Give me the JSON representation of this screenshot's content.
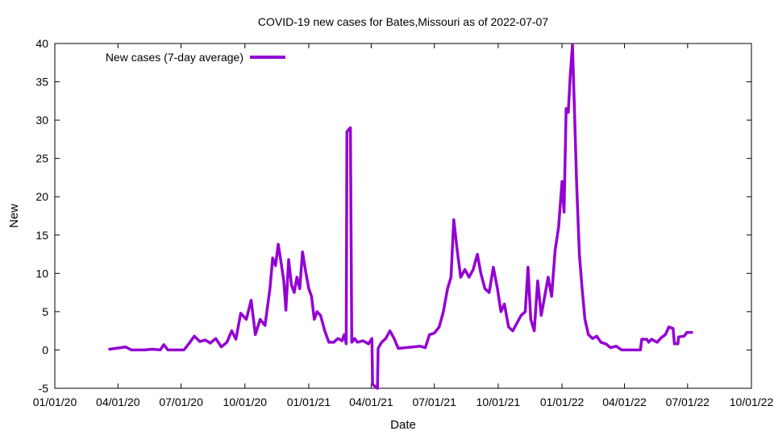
{
  "chart_data": {
    "type": "line",
    "title": "COVID-19 new cases for Bates,Missouri as of 2022-07-07",
    "xlabel": "Date",
    "ylabel": "New",
    "xlim": [
      "2020-01-01",
      "2022-10-01"
    ],
    "ylim": [
      -5,
      40
    ],
    "x_ticks": [
      "01/01/20",
      "04/01/20",
      "07/01/20",
      "10/01/20",
      "01/01/21",
      "04/01/21",
      "07/01/21",
      "10/01/21",
      "01/01/22",
      "04/01/22",
      "07/01/22",
      "10/01/22"
    ],
    "y_ticks": [
      -5,
      0,
      5,
      10,
      15,
      20,
      25,
      30,
      35,
      40
    ],
    "grid": false,
    "legend_position": "top-left",
    "series": [
      {
        "name": "New cases (7-day average)",
        "color": "#9400d3",
        "points": [
          [
            "2020-03-20",
            0.1
          ],
          [
            "2020-03-28",
            0.2
          ],
          [
            "2020-04-05",
            0.3
          ],
          [
            "2020-04-12",
            0.4
          ],
          [
            "2020-04-20",
            0.0
          ],
          [
            "2020-05-10",
            0.0
          ],
          [
            "2020-05-20",
            0.1
          ],
          [
            "2020-06-01",
            0.0
          ],
          [
            "2020-06-06",
            0.7
          ],
          [
            "2020-06-12",
            0.0
          ],
          [
            "2020-07-05",
            0.0
          ],
          [
            "2020-07-12",
            0.8
          ],
          [
            "2020-07-20",
            1.8
          ],
          [
            "2020-07-28",
            1.1
          ],
          [
            "2020-08-05",
            1.3
          ],
          [
            "2020-08-12",
            0.9
          ],
          [
            "2020-08-20",
            1.5
          ],
          [
            "2020-08-28",
            0.4
          ],
          [
            "2020-09-05",
            1.0
          ],
          [
            "2020-09-12",
            2.5
          ],
          [
            "2020-09-18",
            1.4
          ],
          [
            "2020-09-25",
            4.8
          ],
          [
            "2020-10-03",
            4.0
          ],
          [
            "2020-10-10",
            6.5
          ],
          [
            "2020-10-16",
            2.0
          ],
          [
            "2020-10-23",
            4.0
          ],
          [
            "2020-10-30",
            3.2
          ],
          [
            "2020-11-06",
            8.0
          ],
          [
            "2020-11-10",
            12.0
          ],
          [
            "2020-11-14",
            11.0
          ],
          [
            "2020-11-18",
            13.8
          ],
          [
            "2020-11-22",
            11.5
          ],
          [
            "2020-11-26",
            9.0
          ],
          [
            "2020-11-29",
            5.2
          ],
          [
            "2020-12-03",
            11.8
          ],
          [
            "2020-12-07",
            8.5
          ],
          [
            "2020-12-11",
            7.5
          ],
          [
            "2020-12-15",
            9.5
          ],
          [
            "2020-12-19",
            8.0
          ],
          [
            "2020-12-23",
            12.8
          ],
          [
            "2020-12-27",
            10.5
          ],
          [
            "2021-01-01",
            8.0
          ],
          [
            "2021-01-05",
            7.0
          ],
          [
            "2021-01-09",
            4.0
          ],
          [
            "2021-01-13",
            5.0
          ],
          [
            "2021-01-18",
            4.5
          ],
          [
            "2021-01-24",
            2.5
          ],
          [
            "2021-01-30",
            1.0
          ],
          [
            "2021-02-06",
            1.0
          ],
          [
            "2021-02-12",
            1.5
          ],
          [
            "2021-02-18",
            1.2
          ],
          [
            "2021-02-21",
            2.0
          ],
          [
            "2021-02-24",
            0.8
          ],
          [
            "2021-02-25",
            28.5
          ],
          [
            "2021-03-02",
            29.0
          ],
          [
            "2021-03-04",
            1.0
          ],
          [
            "2021-03-08",
            1.5
          ],
          [
            "2021-03-12",
            1.0
          ],
          [
            "2021-03-20",
            1.2
          ],
          [
            "2021-03-28",
            0.8
          ],
          [
            "2021-04-02",
            1.5
          ],
          [
            "2021-04-03",
            -4.5
          ],
          [
            "2021-04-10",
            -5.0
          ],
          [
            "2021-04-11",
            0.2
          ],
          [
            "2021-04-16",
            1.0
          ],
          [
            "2021-04-22",
            1.5
          ],
          [
            "2021-04-28",
            2.5
          ],
          [
            "2021-05-04",
            1.5
          ],
          [
            "2021-05-10",
            0.2
          ],
          [
            "2021-05-20",
            0.3
          ],
          [
            "2021-06-01",
            0.4
          ],
          [
            "2021-06-10",
            0.5
          ],
          [
            "2021-06-18",
            0.3
          ],
          [
            "2021-06-24",
            2.0
          ],
          [
            "2021-07-01",
            2.2
          ],
          [
            "2021-07-08",
            3.0
          ],
          [
            "2021-07-14",
            5.0
          ],
          [
            "2021-07-20",
            8.0
          ],
          [
            "2021-07-25",
            9.5
          ],
          [
            "2021-07-29",
            17.0
          ],
          [
            "2021-08-03",
            13.0
          ],
          [
            "2021-08-08",
            9.5
          ],
          [
            "2021-08-14",
            10.5
          ],
          [
            "2021-08-20",
            9.5
          ],
          [
            "2021-08-26",
            10.5
          ],
          [
            "2021-09-01",
            12.5
          ],
          [
            "2021-09-06",
            10.0
          ],
          [
            "2021-09-12",
            8.0
          ],
          [
            "2021-09-18",
            7.5
          ],
          [
            "2021-09-24",
            10.8
          ],
          [
            "2021-09-30",
            8.0
          ],
          [
            "2021-10-05",
            5.0
          ],
          [
            "2021-10-10",
            6.0
          ],
          [
            "2021-10-16",
            3.0
          ],
          [
            "2021-10-22",
            2.5
          ],
          [
            "2021-10-28",
            3.5
          ],
          [
            "2021-11-03",
            4.5
          ],
          [
            "2021-11-09",
            5.0
          ],
          [
            "2021-11-13",
            10.8
          ],
          [
            "2021-11-17",
            4.0
          ],
          [
            "2021-11-22",
            2.5
          ],
          [
            "2021-11-27",
            9.0
          ],
          [
            "2021-12-02",
            4.5
          ],
          [
            "2021-12-07",
            7.0
          ],
          [
            "2021-12-12",
            9.5
          ],
          [
            "2021-12-17",
            7.0
          ],
          [
            "2021-12-22",
            13.0
          ],
          [
            "2021-12-27",
            16.0
          ],
          [
            "2022-01-01",
            22.0
          ],
          [
            "2022-01-04",
            18.0
          ],
          [
            "2022-01-07",
            31.5
          ],
          [
            "2022-01-10",
            31.0
          ],
          [
            "2022-01-13",
            36.0
          ],
          [
            "2022-01-16",
            39.8
          ],
          [
            "2022-01-19",
            31.0
          ],
          [
            "2022-01-22",
            22.0
          ],
          [
            "2022-01-26",
            12.5
          ],
          [
            "2022-01-30",
            8.0
          ],
          [
            "2022-02-03",
            4.0
          ],
          [
            "2022-02-08",
            2.0
          ],
          [
            "2022-02-14",
            1.5
          ],
          [
            "2022-02-20",
            1.8
          ],
          [
            "2022-02-26",
            1.0
          ],
          [
            "2022-03-05",
            0.8
          ],
          [
            "2022-03-12",
            0.3
          ],
          [
            "2022-03-20",
            0.5
          ],
          [
            "2022-03-28",
            0.0
          ],
          [
            "2022-04-10",
            0.0
          ],
          [
            "2022-04-24",
            0.0
          ],
          [
            "2022-04-26",
            1.4
          ],
          [
            "2022-05-03",
            1.4
          ],
          [
            "2022-05-06",
            1.0
          ],
          [
            "2022-05-10",
            1.4
          ],
          [
            "2022-05-18",
            1.0
          ],
          [
            "2022-05-24",
            1.6
          ],
          [
            "2022-05-30",
            2.0
          ],
          [
            "2022-06-04",
            3.0
          ],
          [
            "2022-06-10",
            2.8
          ],
          [
            "2022-06-12",
            0.8
          ],
          [
            "2022-06-17",
            0.8
          ],
          [
            "2022-06-18",
            1.7
          ],
          [
            "2022-06-26",
            1.8
          ],
          [
            "2022-06-30",
            2.3
          ],
          [
            "2022-07-07",
            2.3
          ]
        ]
      }
    ]
  }
}
